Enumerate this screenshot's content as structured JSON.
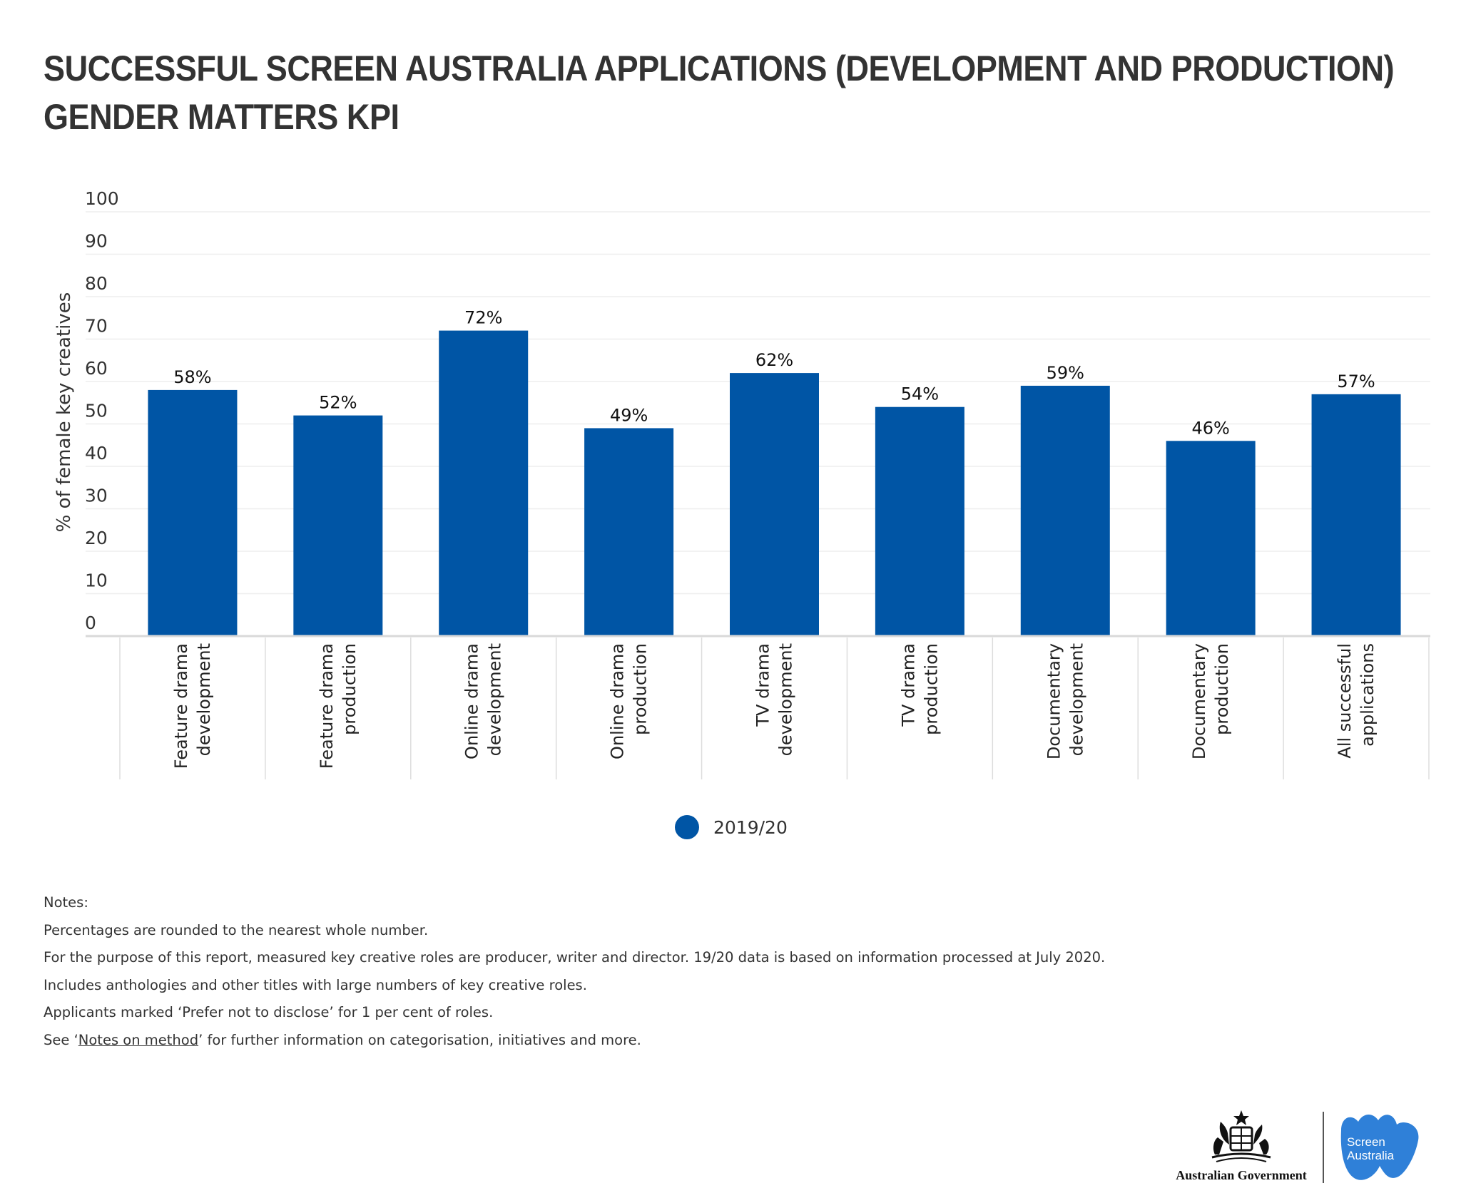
{
  "title": {
    "line1": "SUCCESSFUL SCREEN AUSTRALIA APPLICATIONS (DEVELOPMENT AND PRODUCTION)",
    "line2": "GENDER MATTERS KPI"
  },
  "chart_data": {
    "type": "bar",
    "ylabel": "% of female key creatives",
    "xlabel": "",
    "ylim": [
      0,
      100
    ],
    "yticks": [
      0,
      10,
      20,
      30,
      40,
      50,
      60,
      70,
      80,
      90,
      100
    ],
    "grid": true,
    "legend_placement": "bottom-center",
    "categories": [
      [
        "Feature drama",
        "development"
      ],
      [
        "Feature drama",
        "production"
      ],
      [
        "Online drama",
        "development"
      ],
      [
        "Online drama",
        "production"
      ],
      [
        "TV drama",
        "development"
      ],
      [
        "TV drama",
        "production"
      ],
      [
        "Documentary",
        "development"
      ],
      [
        "Documentary",
        "production"
      ],
      [
        "All successful",
        "applications"
      ]
    ],
    "series": [
      {
        "name": "2019/20",
        "color": "#0055a5",
        "values": [
          58,
          52,
          72,
          49,
          62,
          54,
          59,
          46,
          57
        ],
        "labels": [
          "58%",
          "52%",
          "72%",
          "49%",
          "62%",
          "54%",
          "59%",
          "46%",
          "57%"
        ]
      }
    ]
  },
  "legend": {
    "label": "2019/20",
    "color": "#0055a5"
  },
  "notes": {
    "heading": "Notes:",
    "line1": "Percentages are rounded to the nearest whole number.",
    "line2": "For the purpose of this report, measured key creative roles are producer, writer and director. 19/20 data is based on information processed at July 2020.",
    "line3": "Includes anthologies and other titles with large numbers of key creative roles.",
    "line4": "Applicants marked ‘Prefer not to disclose’ for 1 per cent of roles.",
    "line5_prefix": "See ‘",
    "line5_link": "Notes on method",
    "line5_suffix": "’ for further information on categorisation, initiatives and more."
  },
  "logos": {
    "government_text": "Australian Government",
    "screen_australia_line1": "Screen",
    "screen_australia_line2": "Australia",
    "screen_australia_color": "#2f80d8"
  }
}
